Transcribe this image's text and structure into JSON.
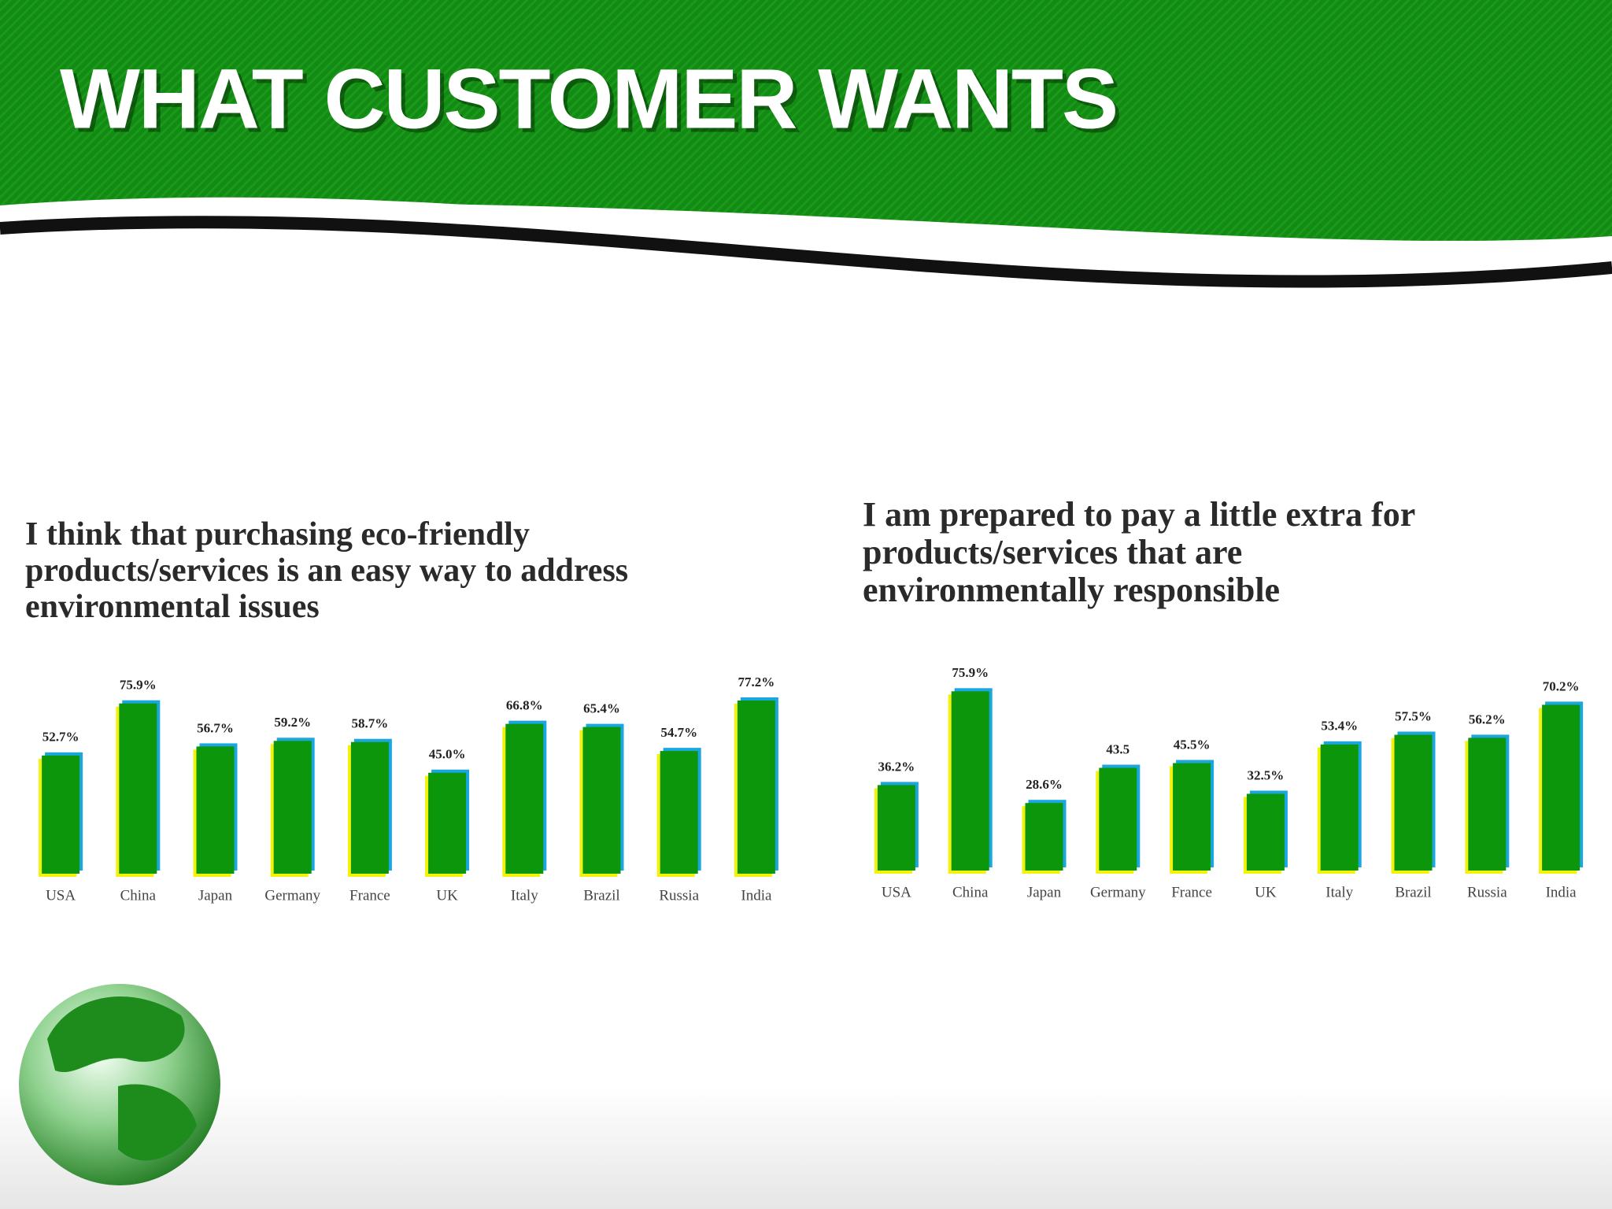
{
  "title": "WHAT CUSTOMER WANTS",
  "chart_data": [
    {
      "type": "bar",
      "title": "I think that purchasing eco-friendly products/services is an easy way to address environmental issues",
      "categories": [
        "USA",
        "China",
        "Japan",
        "Germany",
        "France",
        "UK",
        "Italy",
        "Brazil",
        "Russia",
        "India"
      ],
      "values": [
        52.7,
        75.9,
        56.7,
        59.2,
        58.7,
        45.0,
        66.8,
        65.4,
        54.7,
        77.2
      ],
      "value_labels": [
        "52.7%",
        "75.9%",
        "56.7%",
        "59.2%",
        "58.7%",
        "45.0%",
        "66.8%",
        "65.4%",
        "54.7%",
        "77.2%"
      ],
      "color": "#0b960b"
    },
    {
      "type": "bar",
      "title": "I am prepared to pay a little extra for products/services that are environmentally responsible",
      "categories": [
        "USA",
        "China",
        "Japan",
        "Germany",
        "France",
        "UK",
        "Italy",
        "Brazil",
        "Russia",
        "India"
      ],
      "values": [
        36.2,
        75.9,
        28.6,
        43.5,
        45.5,
        32.5,
        53.4,
        57.5,
        56.2,
        70.2
      ],
      "value_labels": [
        "36.2%",
        "75.9%",
        "28.6%",
        "43.5",
        "45.5%",
        "32.5%",
        "53.4%",
        "57.5%",
        "56.2%",
        "70.2%"
      ],
      "color": "#0b960b"
    }
  ]
}
